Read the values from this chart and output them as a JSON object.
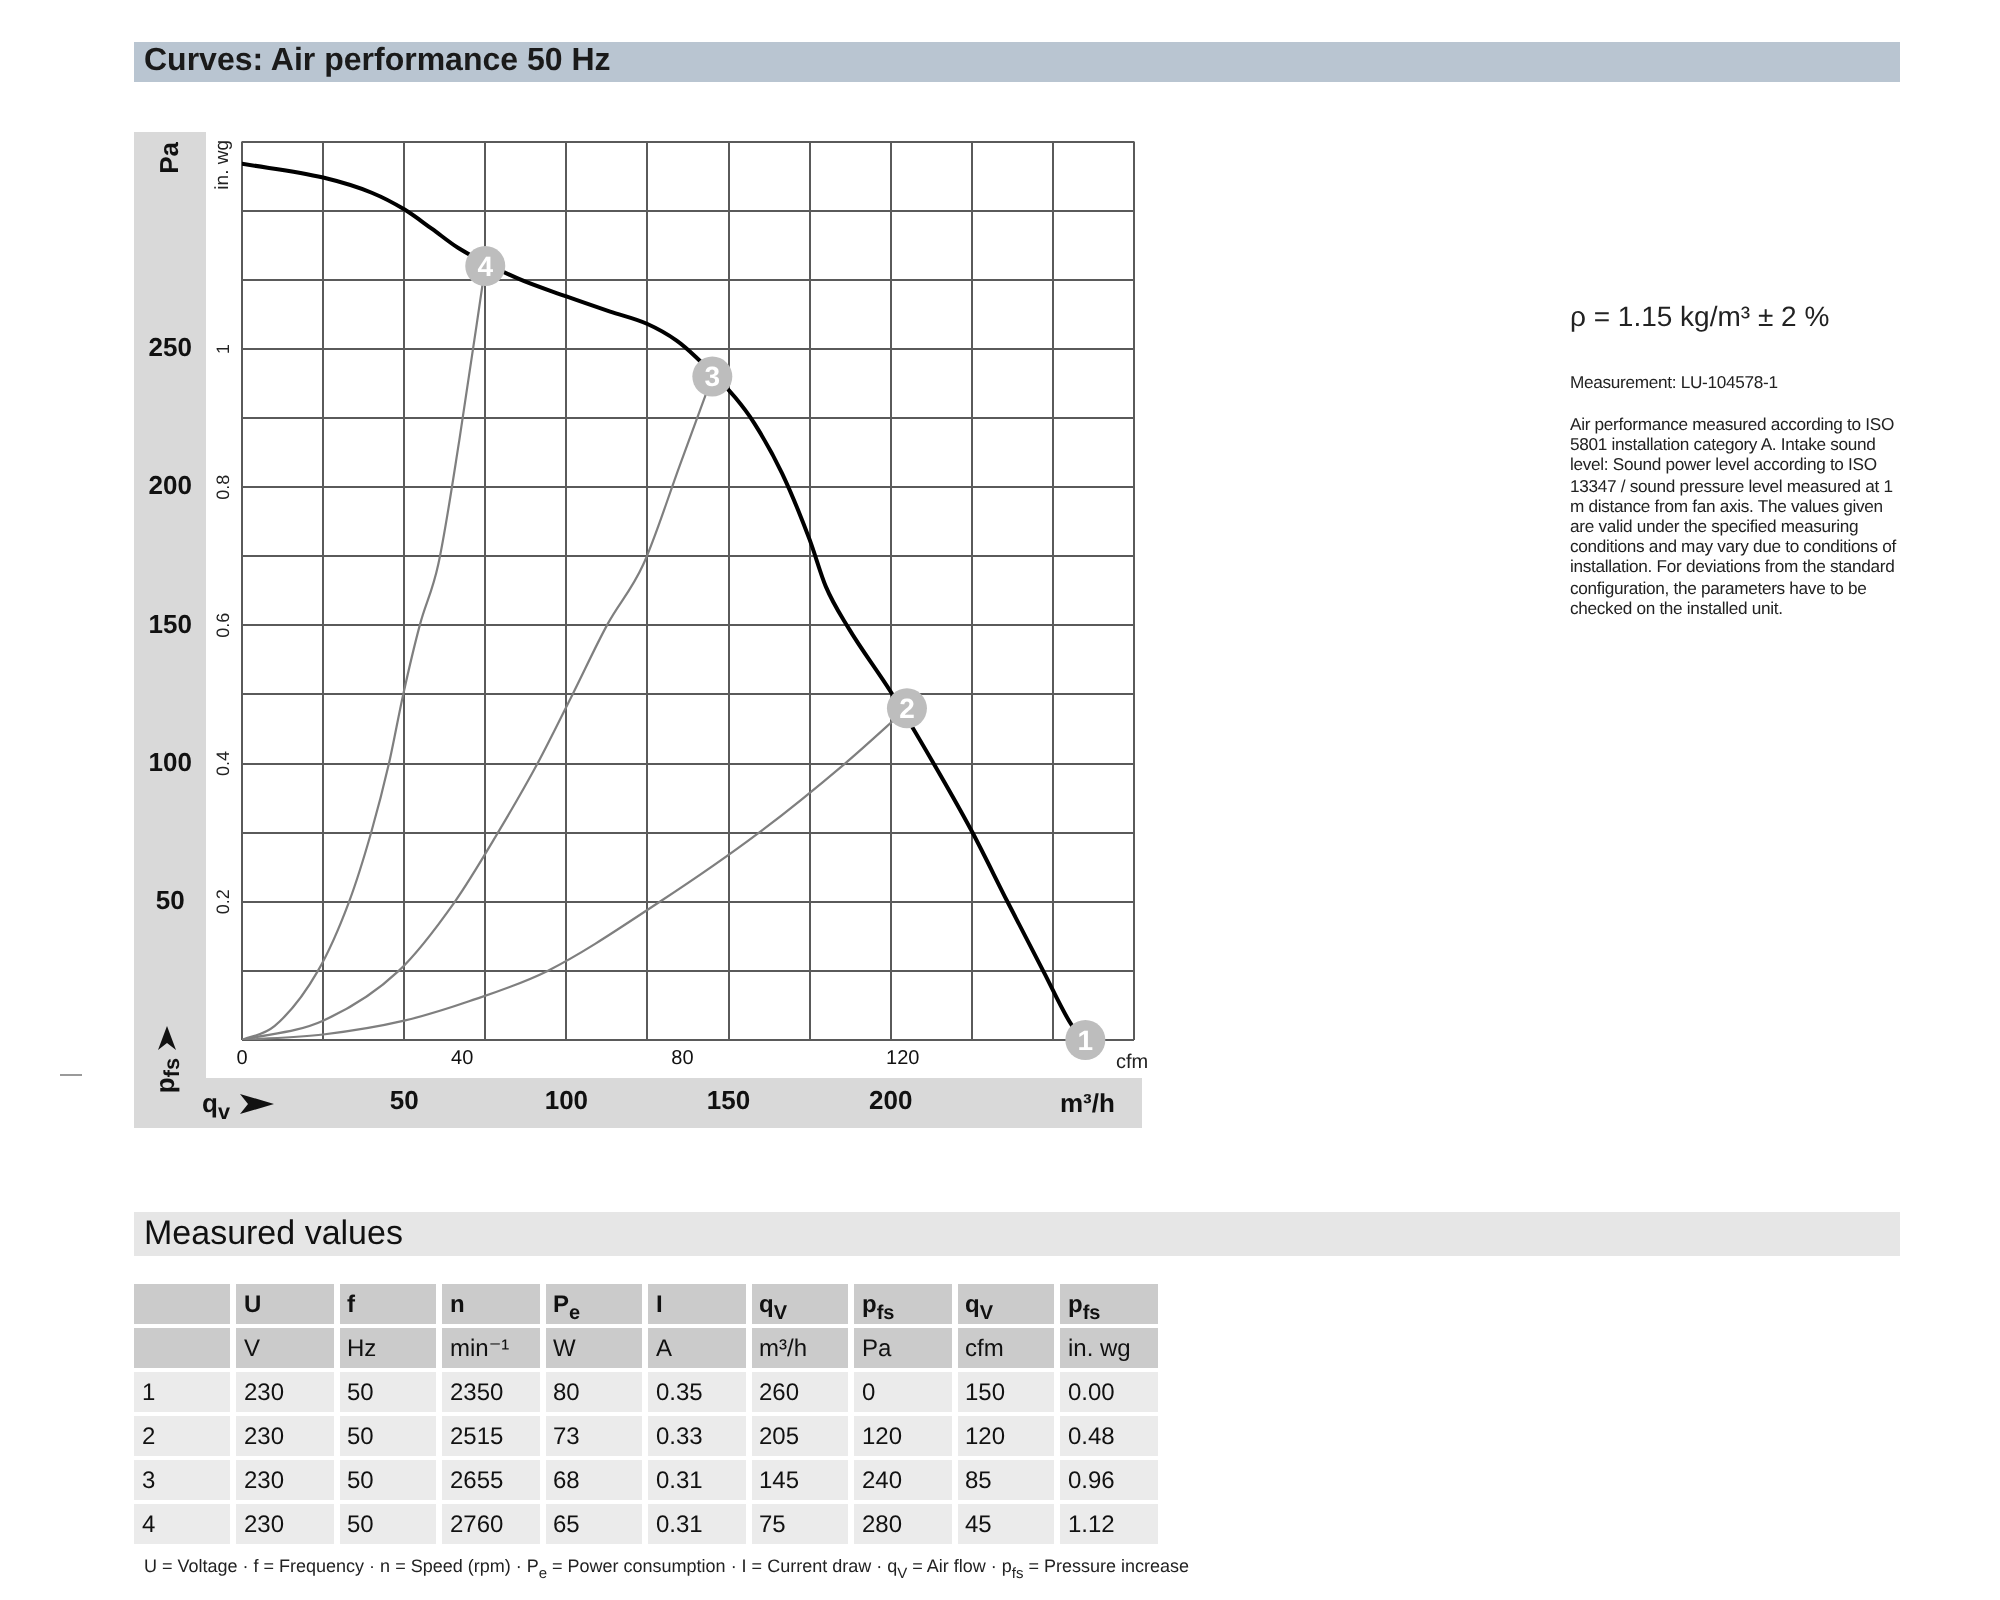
{
  "chart_data": [
    {
      "type": "line",
      "title": "Curves: Air performance 50 Hz",
      "xlabel": "m³/h",
      "ylabel": "Pa",
      "x2label": "cfm",
      "y2label": "in. wg",
      "annotations": [
        "p$_{fs}$",
        "q$_{v}$",
        {
          "text": "1",
          "x": 260,
          "y": 0
        },
        {
          "text": "2",
          "x": 205,
          "y": 120
        },
        {
          "text": "3",
          "x": 145,
          "y": 240
        },
        {
          "text": "4",
          "x": 75,
          "y": 280
        }
      ],
      "xlim": [
        0,
        275
      ],
      "xticks": [
        {
          "value": 0,
          "label": null
        },
        {
          "value": 25,
          "label": null
        },
        50,
        {
          "value": 75,
          "label": null
        },
        100,
        {
          "value": 125,
          "label": null
        },
        150,
        {
          "value": 175,
          "label": null
        },
        200,
        {
          "value": 225,
          "label": null
        },
        {
          "value": 250,
          "label": null
        },
        {
          "value": 275,
          "label": null
        }
      ],
      "x2lim": [
        0,
        162
      ],
      "x2ticks": [
        0,
        40,
        80,
        120
      ],
      "ylim": [
        0,
        325
      ],
      "yticks": [
        {
          "value": 0,
          "label": null
        },
        {
          "value": 25,
          "label": null
        },
        50,
        {
          "value": 75,
          "label": null
        },
        100,
        {
          "value": 125,
          "label": null
        },
        150,
        {
          "value": 175,
          "label": null
        },
        200,
        {
          "value": 225,
          "label": null
        },
        250,
        {
          "value": 275,
          "label": null
        },
        {
          "value": 300,
          "label": null
        },
        {
          "value": 325,
          "label": null
        }
      ],
      "y2lim": [
        0,
        1.3
      ],
      "y2ticks": [
        0.2,
        0.4,
        0.6,
        0.8,
        1
      ],
      "grid": true,
      "marker": "none",
      "series": [
        {
          "type": "line",
          "color": "#000000",
          "x": [
            0,
            25,
            40,
            50,
            58.5,
            66.7,
            85,
            100,
            113.5,
            125,
            134,
            140,
            152,
            158,
            166.5,
            175,
            180,
            187,
            200,
            213,
            225,
            236,
            247,
            256,
            260
          ],
          "values": [
            317,
            312,
            306.5,
            300.5,
            293.5,
            286.5,
            275.5,
            269,
            263.5,
            259,
            253,
            247,
            232.5,
            223,
            205,
            181,
            164,
            149,
            126,
            100.5,
            75.5,
            50,
            25,
            5,
            0
          ]
        },
        {
          "type": "line",
          "color": "#7f7f7f",
          "x": [
            0,
            10,
            23.4,
            33,
            39.8,
            45.3,
            49.7,
            54.8,
            60.5,
            67,
            75
          ],
          "values": [
            0,
            5,
            25,
            50,
            75,
            100,
            125,
            150,
            172,
            217,
            280
          ]
        },
        {
          "type": "line",
          "color": "#7f7f7f",
          "x": [
            0,
            25,
            48.3,
            65.6,
            78.9,
            91.1,
            101.9,
            112.5,
            123.7,
            135,
            145
          ],
          "values": [
            0,
            7,
            25,
            50,
            75,
            100,
            125,
            150,
            172,
            208,
            240
          ]
        },
        {
          "type": "line",
          "color": "#7f7f7f",
          "x": [
            0,
            25,
            50,
            70,
            94.2,
            128.8,
            159.4,
            185.9,
            205
          ],
          "values": [
            0,
            2,
            7,
            14,
            25,
            50,
            75,
            100,
            120
          ]
        },
        {
          "type": "scatter",
          "color": "#bdbdbd",
          "marker": "circle",
          "x": [
            260,
            205,
            145,
            75
          ],
          "values": [
            0,
            120,
            240,
            280
          ]
        }
      ]
    },
    {
      "type": "other",
      "annotations": [
        "ρ = 1.15 kg/m³ ± 2 %",
        "Measurement: LU-104578-1",
        "Air performance measured according to ISO 5801 installation category A. Intake sound level: Sound power level according to ISO 13347 / sound pressure level measured at 1 m distance from fan axis. The values given are valid under the specified measuring conditions and may vary due to conditions of installation. For deviations from the standard configuration, the parameters have to be checked on the installed unit."
      ]
    },
    {
      "type": "heatmap",
      "title": "Measured values",
      "categories": [
        "U",
        "f",
        "n",
        "P$_{e}$",
        "I",
        "q$_{V}$",
        "p$_{fs}$",
        "q$_{V}$",
        "p$_{fs}$"
      ],
      "y_categories": [
        "1",
        "2",
        "3",
        "4"
      ],
      "cells": [
        [
          230,
          50,
          2350,
          80,
          0.35,
          260,
          0,
          150,
          0
        ],
        [
          230,
          50,
          2515,
          73,
          0.33,
          205,
          120,
          120,
          0.48
        ],
        [
          230,
          50,
          2655,
          68,
          0.31,
          145,
          240,
          85,
          0.96
        ],
        [
          230,
          50,
          2760,
          65,
          0.31,
          75,
          280,
          45,
          1.12
        ]
      ],
      "cell_labels": [
        [
          "230",
          "50",
          "2350",
          "80",
          "0.35",
          "260",
          "0",
          "150",
          "0.00"
        ],
        [
          "230",
          "50",
          "2515",
          "73",
          "0.33",
          "205",
          "120",
          "120",
          "0.48"
        ],
        [
          "230",
          "50",
          "2655",
          "68",
          "0.31",
          "145",
          "240",
          "85",
          "0.96"
        ],
        [
          "230",
          "50",
          "2760",
          "65",
          "0.31",
          "75",
          "280",
          "45",
          "1.12"
        ]
      ],
      "annotations": [
        "V",
        "Hz",
        "min⁻¹",
        "W",
        "A",
        "m³/h",
        "Pa",
        "cfm",
        "in. wg",
        "U = Voltage · f = Frequency · n = Speed (rpm) · P$_{e}$ = Power consumption · I = Current draw · q$_{V}$ = Air flow · p$_{fs}$ = Pressure increase"
      ]
    }
  ]
}
